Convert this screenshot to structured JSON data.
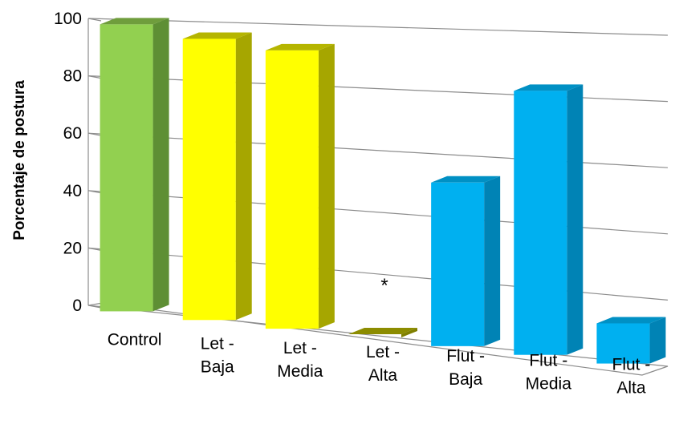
{
  "chart_data": {
    "type": "bar",
    "style": "3d-column",
    "title": "",
    "xlabel": "",
    "ylabel": "Porcentaje de postura",
    "ylim": [
      0,
      100
    ],
    "yticks": [
      0,
      20,
      40,
      60,
      80,
      100
    ],
    "grid": true,
    "legend": "none",
    "categories": [
      [
        "Control"
      ],
      [
        "Let -",
        "Baja"
      ],
      [
        "Let -",
        "Media"
      ],
      [
        "Let -",
        "Alta"
      ],
      [
        "Flut -",
        "Baja"
      ],
      [
        "Flut -",
        "Media"
      ],
      [
        "Flut -",
        "Alta"
      ]
    ],
    "values": [
      100,
      98,
      97,
      0,
      57,
      92,
      14
    ],
    "colors": [
      "#92d050",
      "#ffff00",
      "#ffff00",
      "#ffff00",
      "#00b0f0",
      "#00b0f0",
      "#00b0f0"
    ],
    "side_colors": [
      "#5e8f34",
      "#a6a600",
      "#a6a600",
      "#7f7f00",
      "#0083b5",
      "#0083b5",
      "#0083b5"
    ],
    "top_colors": [
      "#6f9d3c",
      "#b5b500",
      "#b5b500",
      "#8c8c00",
      "#0090c4",
      "#0090c4",
      "#0090c4"
    ],
    "annotations": [
      {
        "category_index": 3,
        "text": "*"
      }
    ]
  }
}
